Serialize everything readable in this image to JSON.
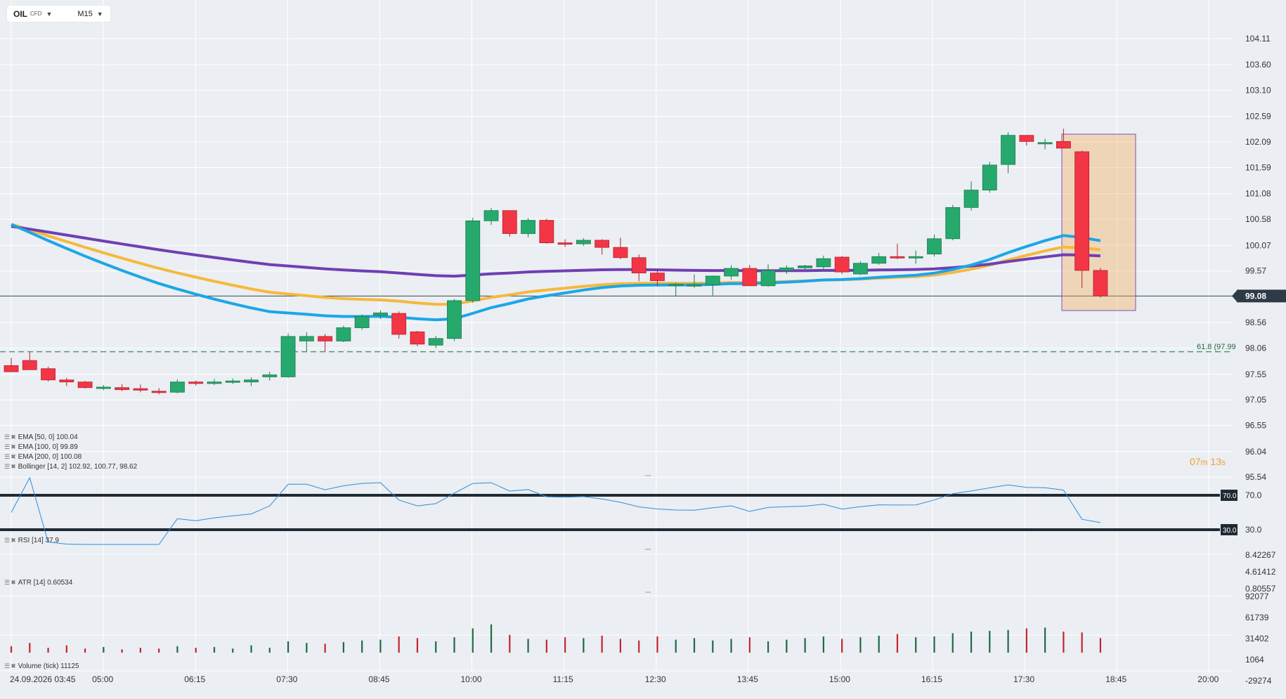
{
  "header": {
    "symbol": "OIL",
    "instrument_type": "CFD",
    "timeframe": "M15"
  },
  "indicators": [
    {
      "label": "EMA [50, 0] 100.04",
      "color": "#f5b93b"
    },
    {
      "label": "EMA [100, 0] 99.89",
      "color": "#6f3fb3"
    },
    {
      "label": "EMA [200, 0] 100.08",
      "color": "#1ba6e8"
    },
    {
      "label": "Bollinger [14, 2] 102.92, 100.77, 98.62",
      "color": "#888888"
    }
  ],
  "rsi_label": "RSI [14] 37.9",
  "atr_label": "ATR [14] 0.60534",
  "volume_label": "Volume (tick) 11125",
  "timer": {
    "minutes": "07",
    "m": "m",
    "seconds": "13",
    "s": "s"
  },
  "chart_data": [
    {
      "type": "candlestick",
      "title": "",
      "price_axis_ticks": [
        "104.11",
        "103.60",
        "103.10",
        "102.59",
        "102.09",
        "101.59",
        "101.08",
        "100.58",
        "100.07",
        "99.57",
        "98.56",
        "98.06",
        "97.55",
        "97.05",
        "96.55",
        "96.04",
        "95.54"
      ],
      "x_tick_labels": [
        "24.09.2026 03:45",
        "05:00",
        "06:15",
        "07:30",
        "08:45",
        "10:00",
        "11:15",
        "12:30",
        "13:45",
        "15:00",
        "16:15",
        "17:30",
        "18:45",
        "20:00"
      ],
      "current_price": "99.08",
      "fib_level": {
        "label": "61.8 (97.99",
        "value": 97.99
      },
      "colors": {
        "up": "#26a96c",
        "down": "#f23645",
        "ema50": "#f5b93b",
        "ema100": "#6f3fb3",
        "ema200": "#1ba6e8"
      },
      "candles": [
        [
          97.72,
          97.87,
          97.61,
          97.6
        ],
        [
          97.82,
          97.98,
          97.66,
          97.64
        ],
        [
          97.66,
          97.7,
          97.41,
          97.44
        ],
        [
          97.44,
          97.48,
          97.32,
          97.4
        ],
        [
          97.4,
          97.42,
          97.27,
          97.29
        ],
        [
          97.28,
          97.34,
          97.24,
          97.3
        ],
        [
          97.29,
          97.36,
          97.22,
          97.25
        ],
        [
          97.27,
          97.35,
          97.2,
          97.24
        ],
        [
          97.22,
          97.28,
          97.16,
          97.2
        ],
        [
          97.2,
          97.45,
          97.18,
          97.4
        ],
        [
          97.4,
          97.43,
          97.33,
          97.37
        ],
        [
          97.37,
          97.46,
          97.34,
          97.4
        ],
        [
          97.4,
          97.47,
          97.36,
          97.42
        ],
        [
          97.4,
          97.49,
          97.32,
          97.44
        ],
        [
          97.5,
          97.6,
          97.43,
          97.54
        ],
        [
          97.5,
          98.35,
          97.48,
          98.29
        ],
        [
          98.2,
          98.37,
          98.0,
          98.29
        ],
        [
          98.29,
          98.34,
          98.0,
          98.2
        ],
        [
          98.2,
          98.5,
          98.18,
          98.46
        ],
        [
          98.46,
          98.72,
          98.42,
          98.68
        ],
        [
          98.7,
          98.8,
          98.63,
          98.75
        ],
        [
          98.74,
          98.78,
          98.25,
          98.33
        ],
        [
          98.38,
          98.4,
          98.1,
          98.14
        ],
        [
          98.12,
          98.3,
          98.06,
          98.25
        ],
        [
          98.25,
          99.02,
          98.2,
          98.99
        ],
        [
          98.99,
          100.61,
          98.95,
          100.55
        ],
        [
          100.55,
          100.8,
          100.47,
          100.75
        ],
        [
          100.75,
          100.75,
          100.24,
          100.3
        ],
        [
          100.3,
          100.6,
          100.23,
          100.56
        ],
        [
          100.56,
          100.59,
          100.1,
          100.12
        ],
        [
          100.12,
          100.19,
          100.04,
          100.09
        ],
        [
          100.1,
          100.21,
          100.06,
          100.17
        ],
        [
          100.17,
          100.19,
          99.89,
          100.03
        ],
        [
          100.03,
          100.22,
          99.8,
          99.83
        ],
        [
          99.83,
          99.89,
          99.37,
          99.53
        ],
        [
          99.53,
          99.6,
          99.27,
          99.38
        ],
        [
          99.31,
          99.34,
          99.07,
          99.31
        ],
        [
          99.3,
          99.5,
          99.24,
          99.3
        ],
        [
          99.3,
          99.48,
          99.09,
          99.47
        ],
        [
          99.47,
          99.68,
          99.4,
          99.62
        ],
        [
          99.62,
          99.69,
          99.28,
          99.28
        ],
        [
          99.28,
          99.7,
          99.26,
          99.58
        ],
        [
          99.58,
          99.68,
          99.51,
          99.63
        ],
        [
          99.63,
          99.69,
          99.6,
          99.67
        ],
        [
          99.65,
          99.87,
          99.58,
          99.81
        ],
        [
          99.84,
          99.86,
          99.51,
          99.55
        ],
        [
          99.51,
          99.76,
          99.49,
          99.72
        ],
        [
          99.72,
          99.92,
          99.69,
          99.85
        ],
        [
          99.85,
          100.1,
          99.8,
          99.84
        ],
        [
          99.84,
          99.97,
          99.71,
          99.85
        ],
        [
          99.9,
          100.28,
          99.85,
          100.2
        ],
        [
          100.2,
          100.86,
          100.17,
          100.81
        ],
        [
          100.81,
          101.32,
          100.75,
          101.15
        ],
        [
          101.15,
          101.7,
          101.1,
          101.64
        ],
        [
          101.65,
          102.28,
          101.48,
          102.22
        ],
        [
          102.22,
          102.22,
          102.02,
          102.1
        ],
        [
          102.08,
          102.15,
          101.95,
          102.08
        ],
        [
          102.1,
          102.35,
          101.97,
          101.97
        ],
        [
          101.9,
          101.92,
          99.24,
          99.58
        ],
        [
          99.58,
          99.63,
          99.05,
          99.08
        ]
      ],
      "volume": [
        8,
        12,
        6,
        9,
        5,
        7,
        4,
        6,
        5,
        8,
        6,
        7,
        5,
        9,
        6,
        14,
        12,
        11,
        13,
        15,
        16,
        20,
        18,
        14,
        19,
        30,
        35,
        22,
        17,
        16,
        19,
        18,
        21,
        17,
        15,
        20,
        16,
        18,
        15,
        17,
        19,
        14,
        16,
        18,
        20,
        17,
        19,
        21,
        23,
        19,
        20,
        24,
        26,
        27,
        28,
        30,
        31,
        26,
        25,
        18
      ],
      "rsi": {
        "levels": [
          70.0,
          30.0
        ],
        "level_labels": [
          "70.0",
          "30.0"
        ]
      },
      "atr_axis_ticks": [
        "8.42267",
        "4.61412",
        "0.80557"
      ],
      "volume_axis_ticks": [
        "92077",
        "61739",
        "31402",
        "1064",
        "-29274"
      ],
      "grid": true
    }
  ]
}
